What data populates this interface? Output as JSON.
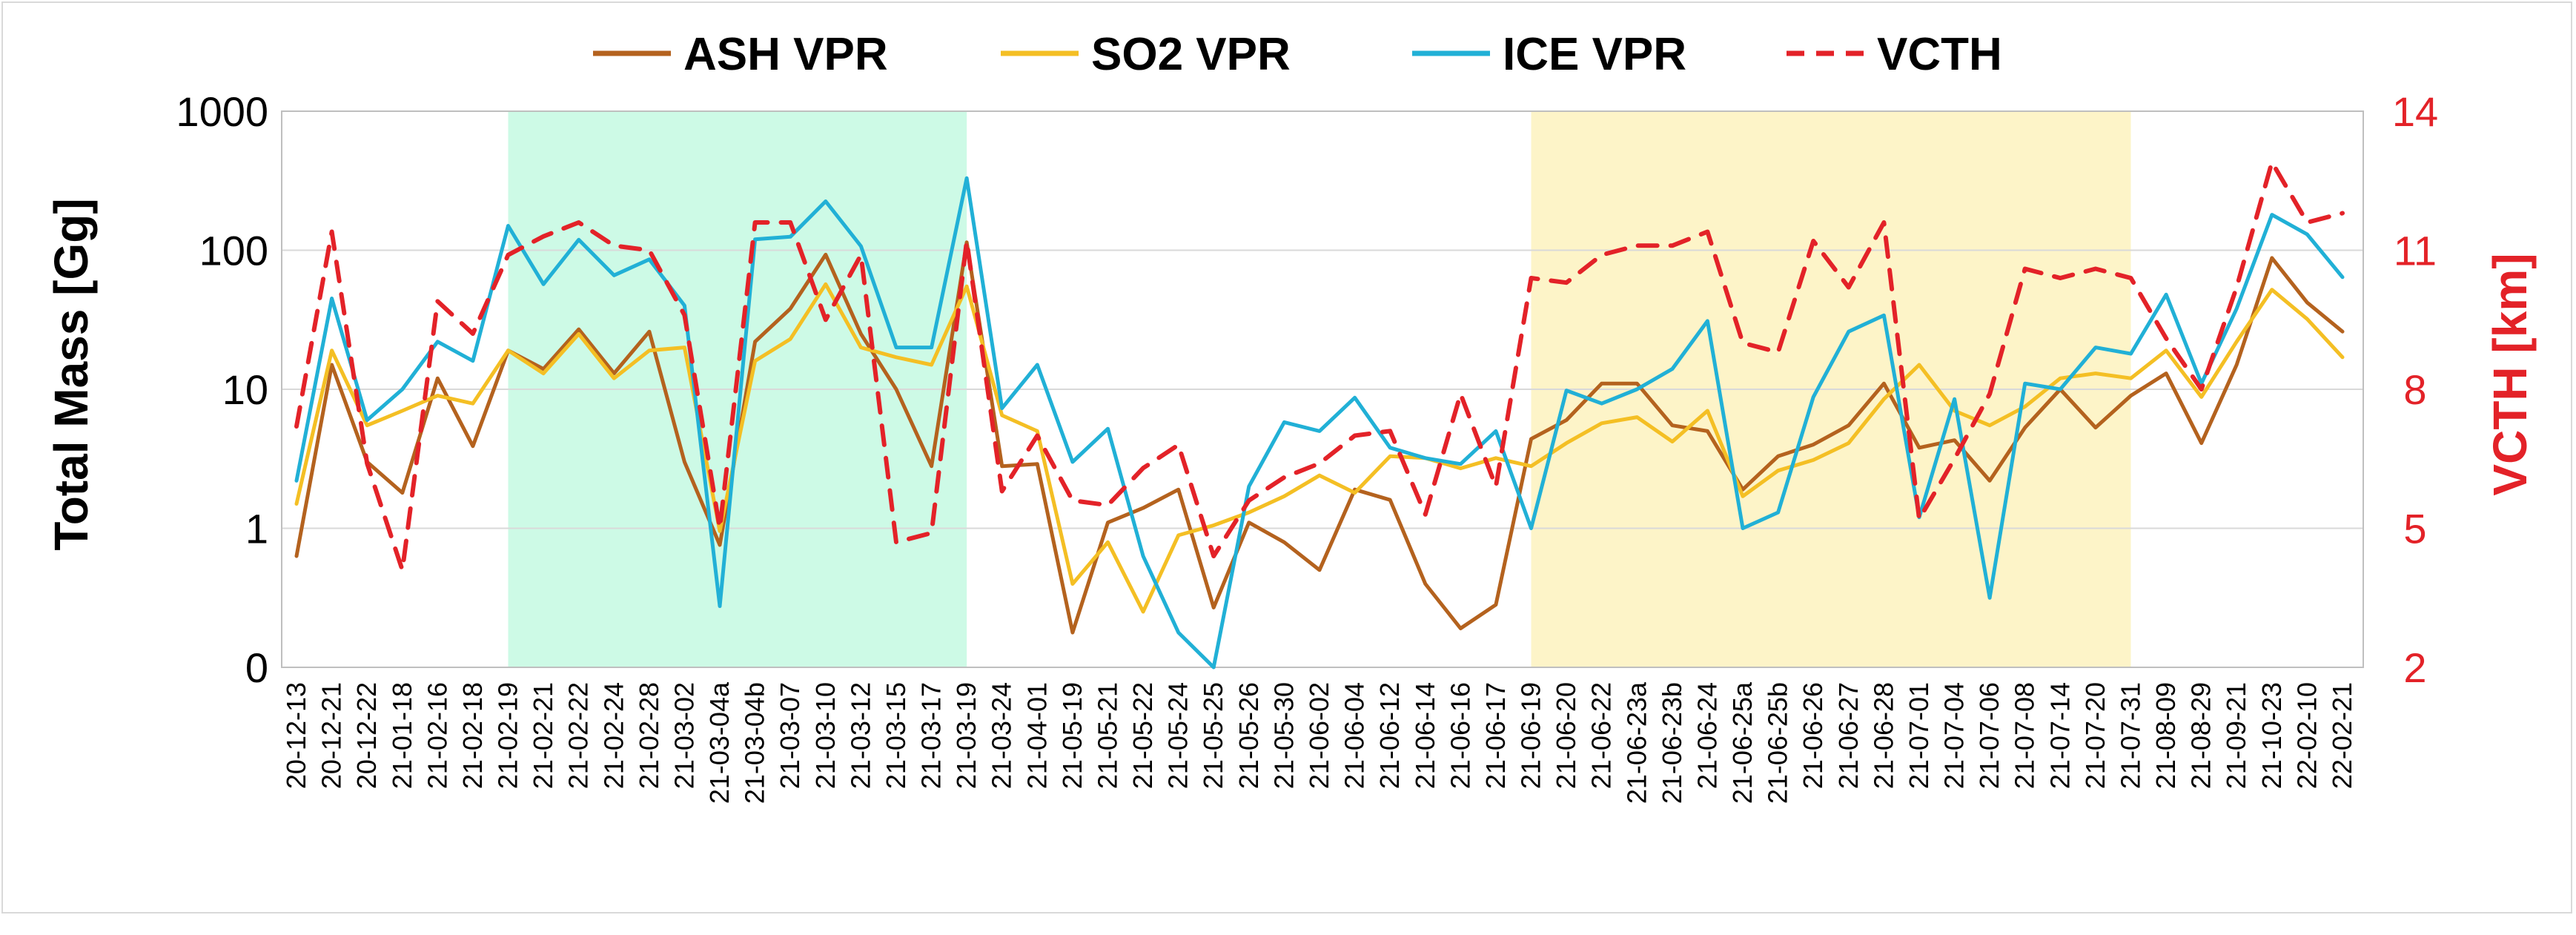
{
  "colors": {
    "ash": "#b4621e",
    "so2": "#f4bf24",
    "ice": "#21b0d6",
    "vcth": "#e32228",
    "shade_green": "#cdfae6",
    "shade_yellow": "#fdf4c8",
    "grid": "#d9d9d9"
  },
  "chart_data": {
    "type": "line",
    "ylabel": "Total Mass [Gg]",
    "y2label": "VCTH [km]",
    "yscale": "log-with-zero",
    "yticks": [
      "0",
      "1",
      "10",
      "100",
      "1000"
    ],
    "y2ticks": [
      "2",
      "5",
      "8",
      "11",
      "14"
    ],
    "ylim": [
      0,
      1000
    ],
    "y2lim": [
      2,
      14
    ],
    "legend_position": "top-center",
    "categories": [
      "20-12-13",
      "20-12-21",
      "20-12-22",
      "21-01-18",
      "21-02-16",
      "21-02-18",
      "21-02-19",
      "21-02-21",
      "21-02-22",
      "21-02-24",
      "21-02-28",
      "21-03-02",
      "21-03-04a",
      "21-03-04b",
      "21-03-07",
      "21-03-10",
      "21-03-12",
      "21-03-15",
      "21-03-17",
      "21-03-19",
      "21-03-24",
      "21-04-01",
      "21-05-19",
      "21-05-21",
      "21-05-22",
      "21-05-24",
      "21-05-25",
      "21-05-26",
      "21-05-30",
      "21-06-02",
      "21-06-04",
      "21-06-12",
      "21-06-14",
      "21-06-16",
      "21-06-17",
      "21-06-19",
      "21-06-20",
      "21-06-22",
      "21-06-23a",
      "21-06-23b",
      "21-06-24",
      "21-06-25a",
      "21-06-25b",
      "21-06-26",
      "21-06-27",
      "21-06-28",
      "21-07-01",
      "21-07-04",
      "21-07-06",
      "21-07-08",
      "21-07-14",
      "21-07-20",
      "21-07-31",
      "21-08-09",
      "21-08-29",
      "21-09-21",
      "21-10-23",
      "22-02-10",
      "22-02-21"
    ],
    "shaded_regions": [
      {
        "from": "21-02-19",
        "to": "21-03-19",
        "color": "green"
      },
      {
        "from": "21-06-19",
        "to": "21-07-31",
        "color": "yellow"
      }
    ],
    "series": [
      {
        "name": "ASH VPR",
        "axis": "left",
        "style": "solid",
        "values": [
          0.8,
          15,
          3,
          1.8,
          12,
          3.9,
          19,
          14,
          27,
          13,
          26,
          3,
          0.88,
          22,
          38,
          93,
          25,
          10,
          2.8,
          114,
          2.8,
          2.9,
          0.25,
          1.1,
          1.4,
          1.9,
          0.43,
          1.1,
          0.9,
          0.7,
          1.9,
          1.6,
          0.6,
          0.28,
          0.45,
          4.4,
          6,
          11,
          11,
          5.5,
          5,
          1.9,
          3.3,
          4,
          5.5,
          11,
          3.8,
          4.3,
          2.2,
          5.3,
          10,
          5.3,
          9,
          13,
          4.1,
          15,
          88,
          42,
          26
        ]
      },
      {
        "name": "SO2 VPR",
        "axis": "left",
        "style": "solid",
        "values": [
          1.5,
          19,
          5.5,
          7,
          9,
          7.9,
          19,
          13,
          25,
          12,
          19,
          20,
          0.98,
          16,
          23,
          57,
          20,
          17,
          15,
          55,
          6.5,
          5,
          0.6,
          0.9,
          0.4,
          0.95,
          1.05,
          1.3,
          1.7,
          2.4,
          1.8,
          3.3,
          3.2,
          2.7,
          3.2,
          2.8,
          4.1,
          5.7,
          6.3,
          4.2,
          7,
          1.7,
          2.6,
          3.1,
          4.1,
          8.5,
          15,
          7,
          5.5,
          7.5,
          12,
          13,
          12,
          19,
          8.8,
          22,
          52,
          32,
          17
        ]
      },
      {
        "name": "ICE VPR",
        "axis": "left",
        "style": "solid",
        "values": [
          2.2,
          45,
          6,
          10,
          22,
          16,
          150,
          57,
          119,
          66,
          86,
          40,
          0.44,
          120,
          125,
          225,
          107,
          20,
          20,
          330,
          7.3,
          15,
          3,
          5.2,
          0.8,
          0.25,
          0,
          2,
          5.8,
          5,
          8.7,
          3.8,
          3.2,
          2.9,
          5,
          1,
          9.8,
          7.9,
          10,
          14,
          31,
          1,
          1.3,
          8.8,
          26,
          34,
          1.2,
          8.5,
          0.5,
          11,
          10,
          20,
          18,
          48,
          11,
          38,
          180,
          130,
          64
        ]
      },
      {
        "name": "VCTH",
        "axis": "right",
        "style": "dashed",
        "values": [
          7.2,
          11.4,
          6.4,
          4.1,
          9.9,
          9.2,
          10.9,
          11.3,
          11.6,
          11.1,
          11.0,
          9.6,
          5.0,
          11.6,
          11.6,
          9.5,
          10.9,
          4.7,
          4.9,
          11.2,
          5.8,
          7.0,
          5.6,
          5.5,
          6.3,
          6.8,
          4.4,
          5.6,
          6.1,
          6.4,
          7.0,
          7.1,
          5.3,
          7.9,
          5.9,
          10.4,
          10.3,
          10.9,
          11.1,
          11.1,
          11.4,
          9.0,
          8.8,
          11.2,
          10.2,
          11.6,
          5.2,
          6.5,
          7.9,
          10.6,
          10.4,
          10.6,
          10.4,
          9.1,
          8.0,
          10.2,
          12.9,
          11.6,
          11.8
        ]
      }
    ]
  }
}
